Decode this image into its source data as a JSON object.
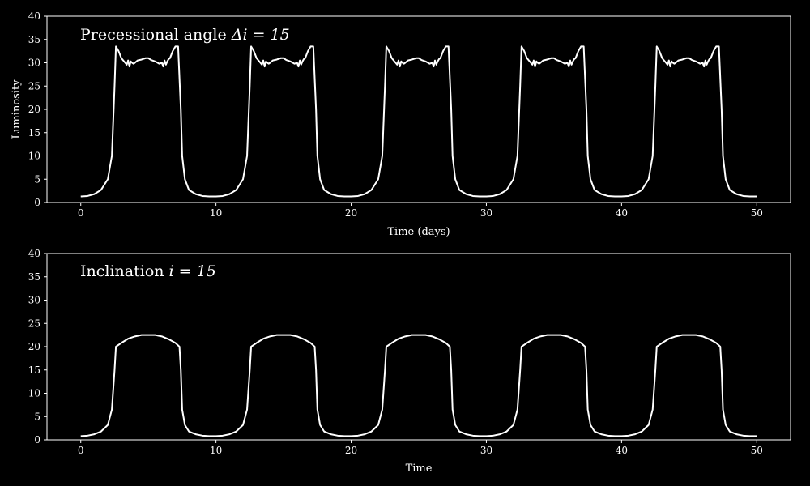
{
  "colors": {
    "background": "#000000",
    "foreground": "#ffffff"
  },
  "chart_data": [
    {
      "type": "line",
      "title": "Precessional angle Δi = 15",
      "title_text": "Precessional angle ",
      "title_math": "Δi = 15",
      "xlabel": "Time (days)",
      "ylabel": "Luminosity",
      "xlim": [
        -2.5,
        52.5
      ],
      "ylim": [
        0,
        40
      ],
      "xticks": [
        0,
        10,
        20,
        30,
        40,
        50
      ],
      "yticks": [
        0,
        5,
        10,
        15,
        20,
        25,
        30,
        35,
        40
      ],
      "grid": false,
      "series": [
        {
          "period": 10,
          "x": [
            0,
            0.5,
            1.0,
            1.5,
            2.0,
            2.3,
            2.5,
            2.6,
            2.8,
            3.0,
            3.2,
            3.4,
            3.5,
            3.6,
            3.7,
            3.8,
            3.9,
            4.0,
            4.2,
            4.5,
            4.8,
            5.0,
            5.2,
            5.5,
            5.8,
            6.0,
            6.1,
            6.2,
            6.3,
            6.4,
            6.5,
            6.6,
            6.8,
            7.0,
            7.2,
            7.4,
            7.5,
            7.7,
            8.0,
            8.5,
            9.0,
            9.5,
            10.0
          ],
          "y": [
            1.3,
            1.4,
            1.8,
            2.7,
            5.0,
            10.0,
            25.0,
            33.5,
            32.5,
            31.0,
            30.3,
            29.6,
            30.5,
            29.2,
            30.3,
            30.0,
            29.8,
            30.0,
            30.5,
            30.7,
            31.0,
            31.0,
            30.6,
            30.3,
            29.8,
            30.0,
            29.2,
            30.5,
            29.6,
            30.3,
            30.8,
            31.0,
            32.5,
            33.5,
            33.5,
            20.0,
            10.0,
            5.0,
            2.7,
            1.8,
            1.4,
            1.3,
            1.3
          ]
        }
      ]
    },
    {
      "type": "line",
      "title": "Inclination i = 15",
      "title_text": "Inclination ",
      "title_math": "i = 15",
      "xlabel": "Time",
      "ylabel": "",
      "xlim": [
        -2.5,
        52.5
      ],
      "ylim": [
        0,
        40
      ],
      "xticks": [
        0,
        10,
        20,
        30,
        40,
        50
      ],
      "yticks": [
        0,
        5,
        10,
        15,
        20,
        25,
        30,
        35,
        40
      ],
      "grid": false,
      "series": [
        {
          "period": 10,
          "x": [
            0,
            0.5,
            1.0,
            1.5,
            2.0,
            2.3,
            2.5,
            2.6,
            3.0,
            3.5,
            4.0,
            4.5,
            5.0,
            5.5,
            6.0,
            6.5,
            7.0,
            7.3,
            7.4,
            7.5,
            7.7,
            8.0,
            8.5,
            9.0,
            9.5,
            10.0
          ],
          "y": [
            0.8,
            0.9,
            1.2,
            1.8,
            3.2,
            6.5,
            15.0,
            20.0,
            20.8,
            21.7,
            22.2,
            22.5,
            22.5,
            22.5,
            22.2,
            21.6,
            20.8,
            20.0,
            15.0,
            6.5,
            3.2,
            1.8,
            1.2,
            0.9,
            0.8,
            0.8
          ]
        }
      ]
    }
  ]
}
